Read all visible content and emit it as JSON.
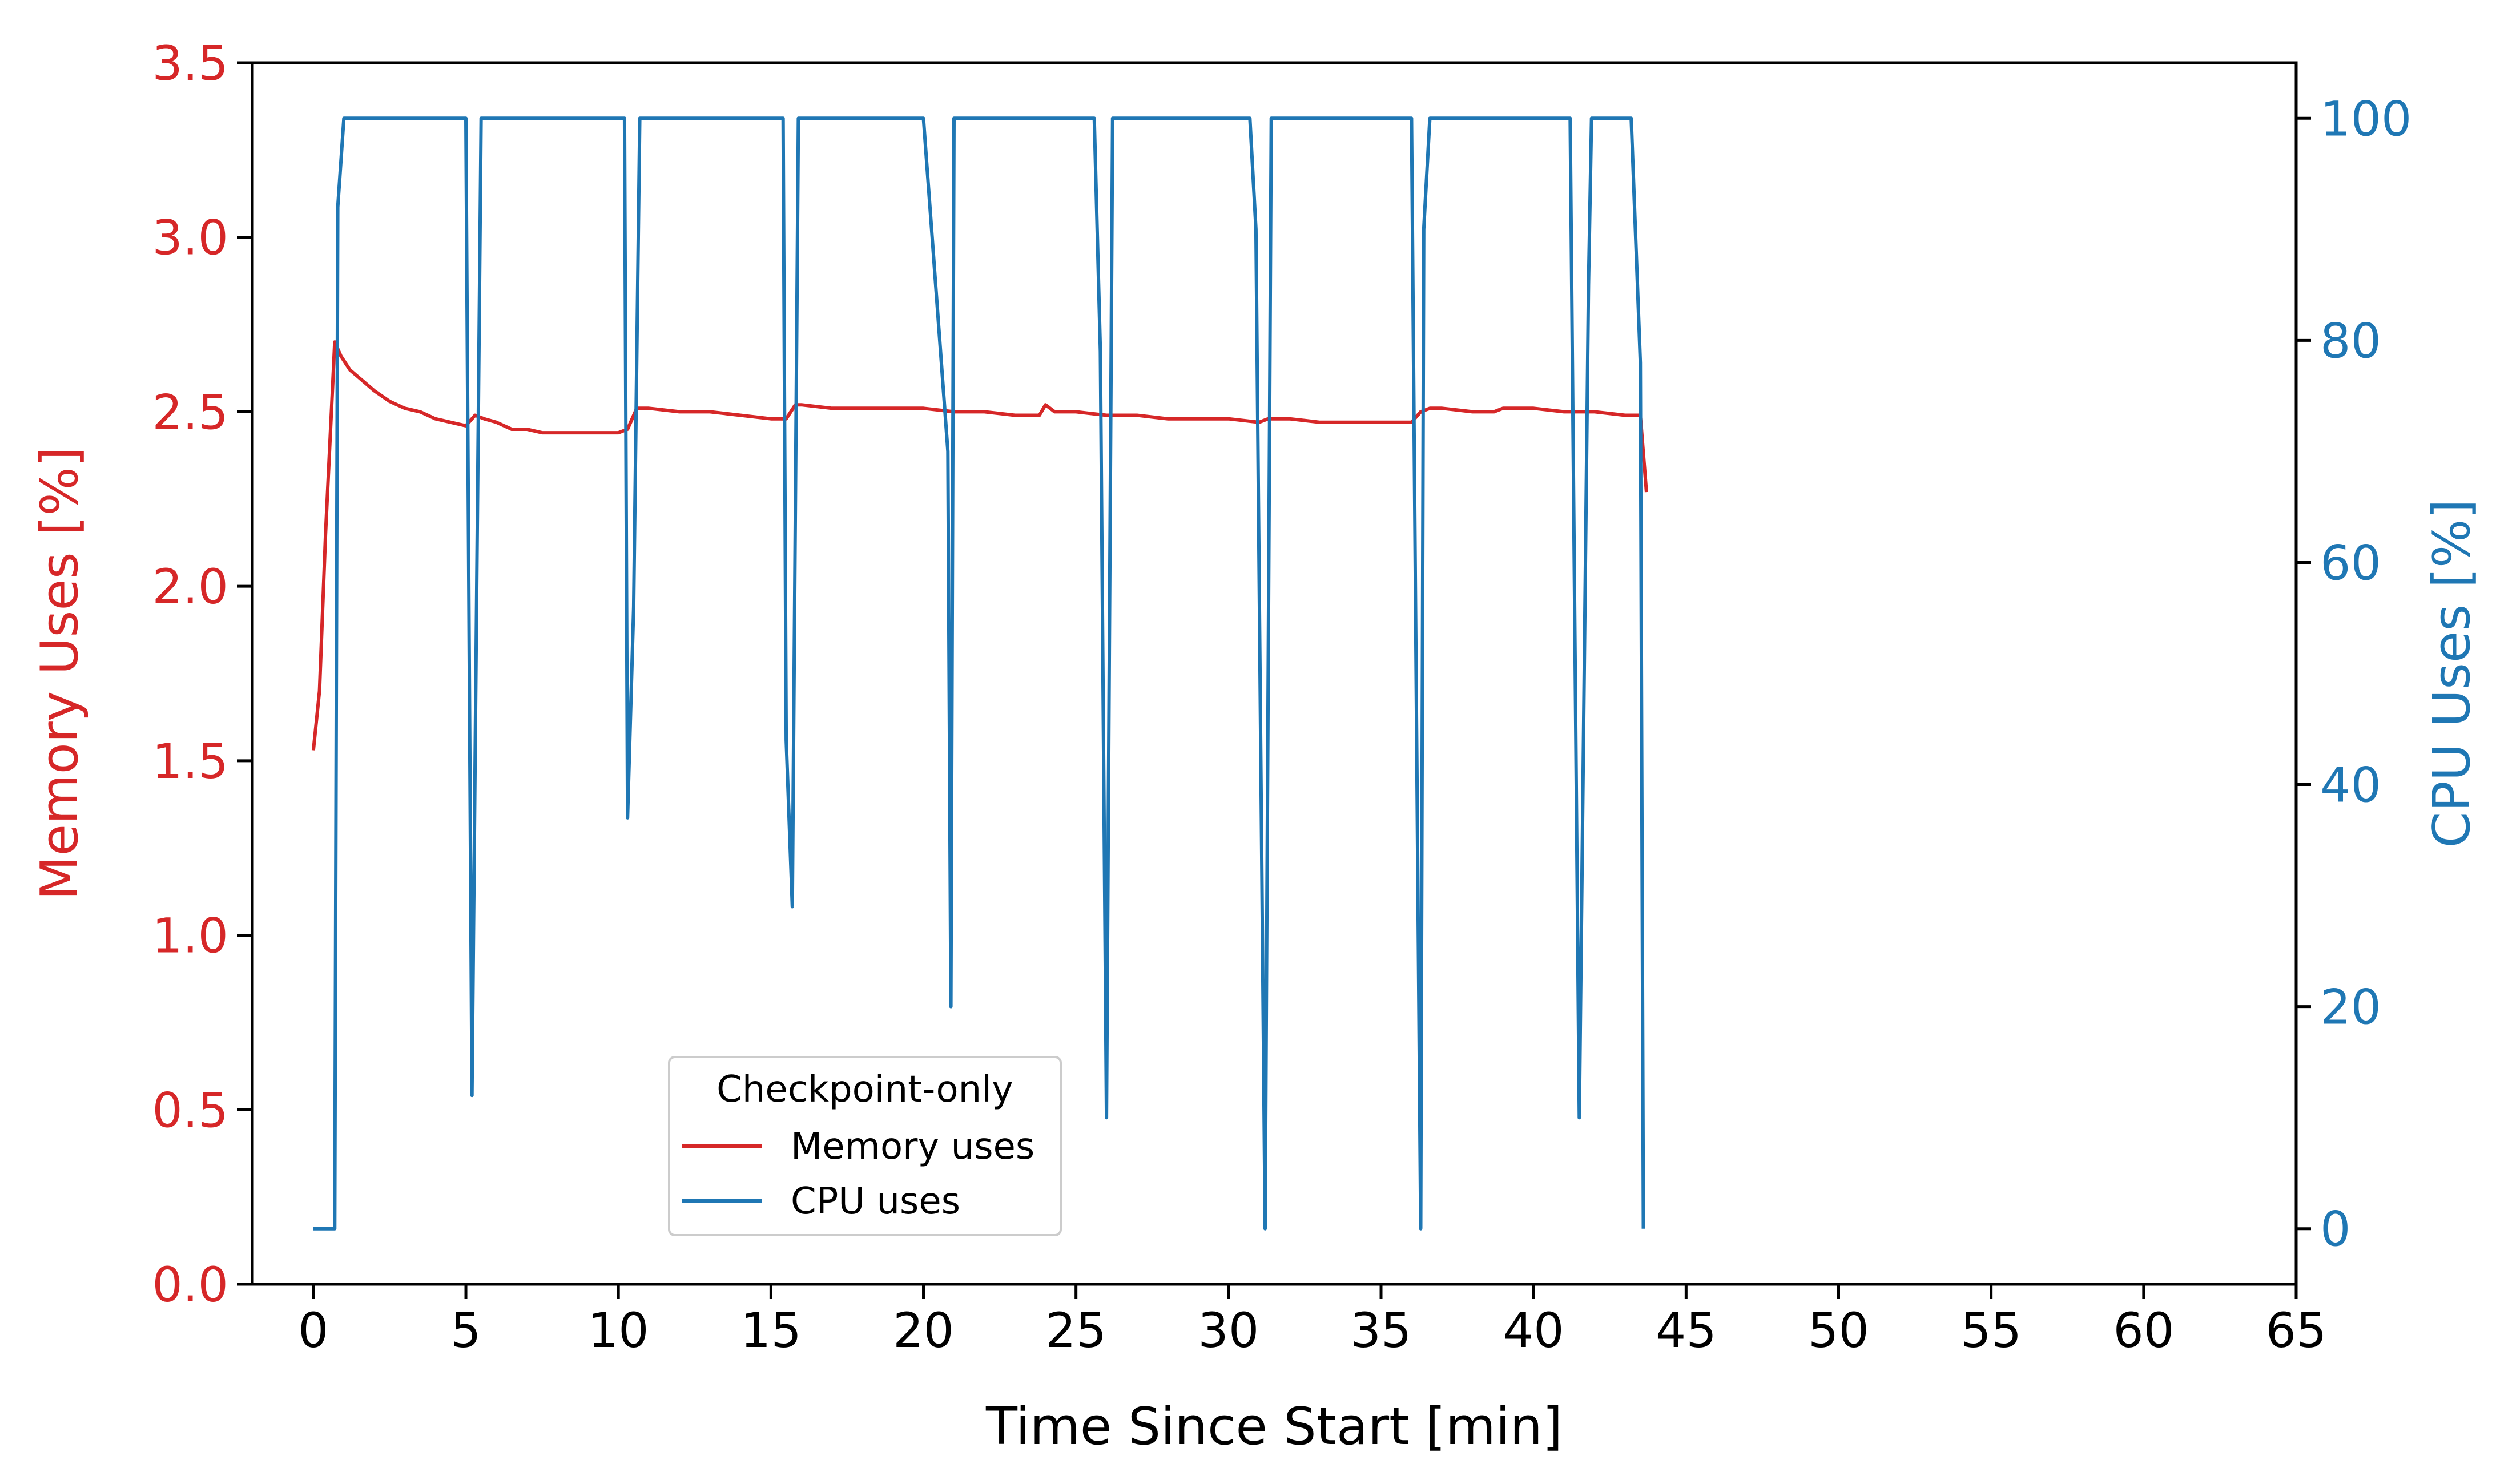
{
  "chart_data": {
    "type": "line",
    "xlabel": "Time Since Start [min]",
    "ylabel_left": "Memory Uses [%]",
    "ylabel_right": "CPU Uses [%]",
    "xlim": [
      -2,
      65
    ],
    "ylim_left": [
      0,
      3.5
    ],
    "ylim_right": [
      -5,
      105
    ],
    "x_ticks": [
      0,
      5,
      10,
      15,
      20,
      25,
      30,
      35,
      40,
      45,
      50,
      55,
      60,
      65
    ],
    "y_left_ticks": [
      "0.0",
      "0.5",
      "1.0",
      "1.5",
      "2.0",
      "2.5",
      "3.0",
      "3.5"
    ],
    "y_right_ticks": [
      0,
      20,
      40,
      60,
      80,
      100
    ],
    "grid": false,
    "legend": {
      "title": "Checkpoint-only",
      "placement": "lower-center",
      "entries": [
        "Memory uses",
        "CPU uses"
      ]
    },
    "colors": {
      "memory": "#d62728",
      "cpu": "#1f77b4"
    },
    "series": [
      {
        "name": "Memory uses",
        "axis": "left",
        "x": [
          0,
          0.2,
          0.4,
          0.7,
          0.9,
          1.2,
          1.6,
          2,
          2.5,
          3,
          3.5,
          4,
          4.5,
          5,
          5.3,
          5.6,
          6,
          6.5,
          7,
          7.5,
          8,
          8.5,
          9,
          9.5,
          10,
          10.3,
          10.6,
          11,
          12,
          13,
          14,
          15,
          15.5,
          15.8,
          16,
          17,
          18,
          19,
          20,
          21,
          22,
          23,
          23.8,
          24,
          24.3,
          25,
          26,
          27,
          28,
          29,
          30,
          31,
          31.3,
          32,
          33,
          34,
          35,
          36,
          36.3,
          36.6,
          37,
          38,
          38.7,
          39,
          40,
          41,
          42,
          43,
          43.5,
          43.7
        ],
        "y": [
          1.53,
          1.7,
          2.15,
          2.7,
          2.66,
          2.62,
          2.59,
          2.56,
          2.53,
          2.51,
          2.5,
          2.48,
          2.47,
          2.46,
          2.49,
          2.48,
          2.47,
          2.45,
          2.45,
          2.44,
          2.44,
          2.44,
          2.44,
          2.44,
          2.44,
          2.45,
          2.51,
          2.51,
          2.5,
          2.5,
          2.49,
          2.48,
          2.48,
          2.52,
          2.52,
          2.51,
          2.51,
          2.51,
          2.51,
          2.5,
          2.5,
          2.49,
          2.49,
          2.52,
          2.5,
          2.5,
          2.49,
          2.49,
          2.48,
          2.48,
          2.48,
          2.47,
          2.48,
          2.48,
          2.47,
          2.47,
          2.47,
          2.47,
          2.5,
          2.51,
          2.51,
          2.5,
          2.5,
          2.51,
          2.51,
          2.5,
          2.5,
          2.49,
          2.49,
          2.27
        ]
      },
      {
        "name": "CPU uses",
        "axis": "right",
        "x": [
          0,
          0.7,
          0.8,
          1.0,
          5.0,
          5.2,
          5.5,
          10.2,
          10.3,
          10.5,
          10.7,
          15.4,
          15.5,
          15.7,
          15.9,
          20.0,
          20.8,
          20.9,
          21.0,
          25.6,
          25.8,
          26.0,
          26.2,
          30.7,
          30.9,
          31.2,
          31.4,
          36.0,
          36.3,
          36.4,
          36.6,
          41.2,
          41.5,
          41.8,
          41.9,
          43.2,
          43.5,
          43.6
        ],
        "y": [
          0,
          0,
          92,
          100,
          100,
          12,
          100,
          100,
          37,
          56,
          100,
          100,
          44,
          29,
          100,
          100,
          70,
          20,
          100,
          100,
          79,
          10,
          100,
          100,
          90,
          0,
          100,
          100,
          0,
          90,
          100,
          100,
          10,
          85,
          100,
          100,
          78,
          0
        ]
      }
    ]
  }
}
